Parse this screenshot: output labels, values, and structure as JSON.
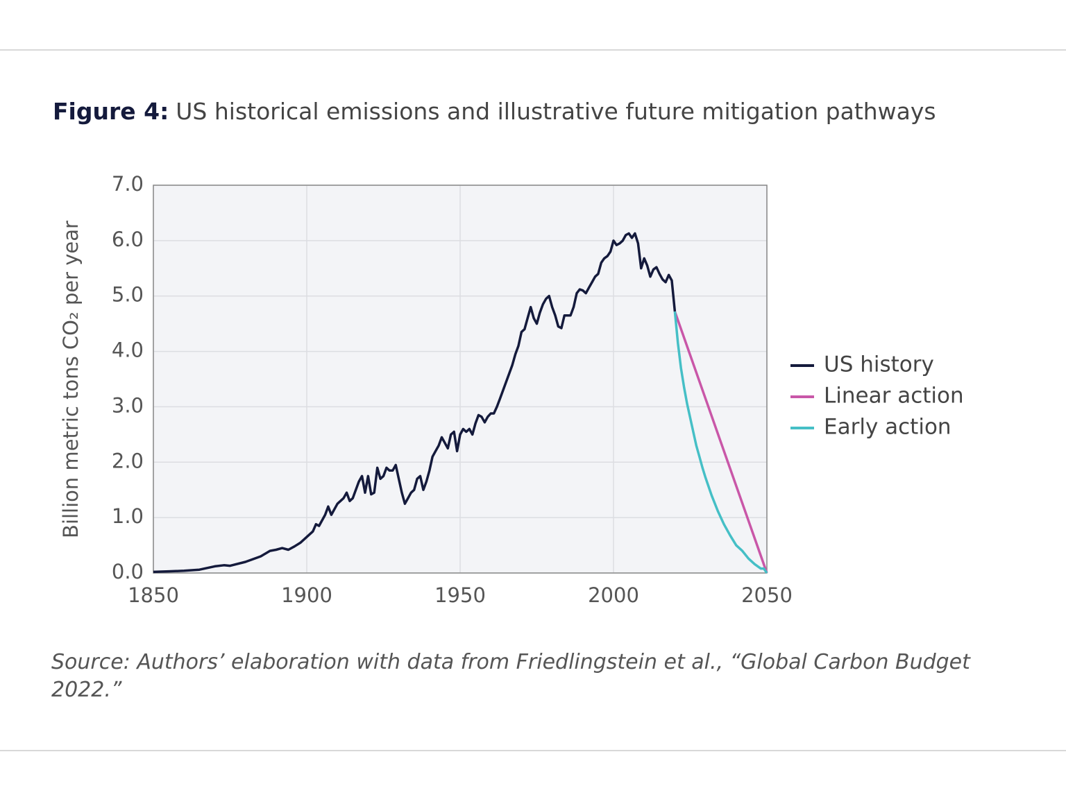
{
  "chart_data": {
    "type": "line",
    "title_label": "Figure 4:",
    "title": "US historical emissions and illustrative future mitigation pathways",
    "y_label": "Billion metric tons CO₂ per year",
    "source": "Source: Authors’ elaboration with data from Friedlingstein et al., “Global Carbon Budget 2022.”",
    "xlim": [
      1850,
      2050
    ],
    "xticks": [
      1850,
      1900,
      1950,
      2000,
      2050
    ],
    "ylim": [
      0,
      7
    ],
    "yticks": [
      {
        "value": 0,
        "label": "0.0"
      },
      {
        "value": 1,
        "label": "1.0"
      },
      {
        "value": 2,
        "label": "2.0"
      },
      {
        "value": 3,
        "label": "3.0"
      },
      {
        "value": 4,
        "label": "4.0"
      },
      {
        "value": 5,
        "label": "5.0"
      },
      {
        "value": 6,
        "label": "6.0"
      },
      {
        "value": 7,
        "label": "7.0"
      }
    ],
    "grid": true,
    "legend": "right",
    "series": [
      {
        "name": "US history",
        "color": "#141a3c",
        "x": [
          1850,
          1855,
          1860,
          1865,
          1870,
          1873,
          1875,
          1880,
          1885,
          1888,
          1890,
          1892,
          1894,
          1896,
          1898,
          1900,
          1902,
          1903,
          1904,
          1906,
          1907,
          1908,
          1910,
          1912,
          1913,
          1914,
          1915,
          1917,
          1918,
          1919,
          1920,
          1921,
          1922,
          1923,
          1924,
          1925,
          1926,
          1927,
          1928,
          1929,
          1930,
          1931,
          1932,
          1933,
          1934,
          1935,
          1936,
          1937,
          1938,
          1939,
          1940,
          1941,
          1942,
          1943,
          1944,
          1945,
          1946,
          1947,
          1948,
          1949,
          1950,
          1951,
          1952,
          1953,
          1954,
          1955,
          1956,
          1957,
          1958,
          1959,
          1960,
          1961,
          1962,
          1963,
          1964,
          1965,
          1966,
          1967,
          1968,
          1969,
          1970,
          1971,
          1972,
          1973,
          1974,
          1975,
          1976,
          1977,
          1978,
          1979,
          1980,
          1981,
          1982,
          1983,
          1984,
          1985,
          1986,
          1987,
          1988,
          1989,
          1990,
          1991,
          1992,
          1993,
          1994,
          1995,
          1996,
          1997,
          1998,
          1999,
          2000,
          2001,
          2002,
          2003,
          2004,
          2005,
          2006,
          2007,
          2008,
          2009,
          2010,
          2011,
          2012,
          2013,
          2014,
          2015,
          2016,
          2017,
          2018,
          2019,
          2020
        ],
        "values": [
          0.02,
          0.03,
          0.04,
          0.06,
          0.12,
          0.14,
          0.13,
          0.2,
          0.3,
          0.4,
          0.42,
          0.45,
          0.42,
          0.48,
          0.55,
          0.65,
          0.75,
          0.88,
          0.85,
          1.05,
          1.2,
          1.05,
          1.25,
          1.35,
          1.45,
          1.3,
          1.35,
          1.65,
          1.75,
          1.45,
          1.75,
          1.42,
          1.45,
          1.9,
          1.7,
          1.75,
          1.9,
          1.85,
          1.85,
          1.95,
          1.7,
          1.45,
          1.25,
          1.35,
          1.45,
          1.5,
          1.7,
          1.75,
          1.5,
          1.65,
          1.85,
          2.1,
          2.2,
          2.3,
          2.45,
          2.35,
          2.25,
          2.5,
          2.55,
          2.2,
          2.5,
          2.6,
          2.55,
          2.6,
          2.5,
          2.7,
          2.85,
          2.82,
          2.72,
          2.82,
          2.88,
          2.88,
          3.0,
          3.15,
          3.3,
          3.45,
          3.6,
          3.75,
          3.95,
          4.1,
          4.35,
          4.4,
          4.6,
          4.8,
          4.6,
          4.5,
          4.7,
          4.85,
          4.95,
          5.0,
          4.8,
          4.65,
          4.45,
          4.42,
          4.65,
          4.65,
          4.65,
          4.8,
          5.05,
          5.12,
          5.1,
          5.05,
          5.15,
          5.25,
          5.35,
          5.4,
          5.6,
          5.68,
          5.72,
          5.8,
          6.0,
          5.92,
          5.95,
          6.0,
          6.1,
          6.13,
          6.05,
          6.13,
          5.95,
          5.5,
          5.68,
          5.55,
          5.35,
          5.48,
          5.52,
          5.4,
          5.3,
          5.25,
          5.38,
          5.28,
          4.72
        ]
      },
      {
        "name": "Linear action",
        "color": "#c957a8",
        "x": [
          2020,
          2050
        ],
        "values": [
          4.72,
          0
        ]
      },
      {
        "name": "Early action",
        "color": "#45bfc6",
        "x": [
          2020,
          2021,
          2022,
          2023,
          2024,
          2025,
          2026,
          2027,
          2028,
          2029,
          2030,
          2032,
          2034,
          2036,
          2038,
          2040,
          2042,
          2044,
          2046,
          2048,
          2049,
          2050
        ],
        "values": [
          4.72,
          4.15,
          3.7,
          3.35,
          3.05,
          2.8,
          2.55,
          2.3,
          2.1,
          1.9,
          1.72,
          1.4,
          1.12,
          0.88,
          0.68,
          0.5,
          0.4,
          0.26,
          0.16,
          0.08,
          0.08,
          0
        ]
      }
    ]
  }
}
